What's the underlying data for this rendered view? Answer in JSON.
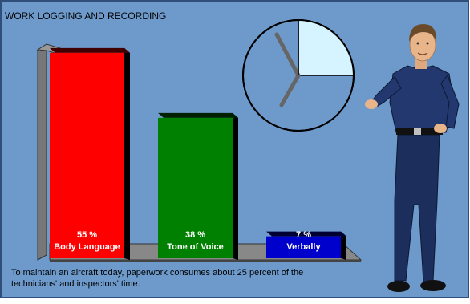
{
  "title": "WORK LOGGING AND RECORDING",
  "caption": "To maintain an aircraft today, paperwork consumes about 25 percent of the technicians' and inspectors' time.",
  "colors": {
    "background": "#6d9acb",
    "frame": "#2f4f7a",
    "bar_red": "#ff0000",
    "bar_green": "#008000",
    "bar_blue": "#0000cc",
    "clock_wedge": "#d6f4ff"
  },
  "clock": {
    "wedge_percent": 25
  },
  "chart_data": {
    "type": "bar",
    "title": "",
    "categories": [
      "Body Language",
      "Tone of Voice",
      "Verbally"
    ],
    "values": [
      55,
      38,
      7
    ],
    "value_labels": [
      "55 %",
      "38 %",
      "7 %"
    ],
    "colors": [
      "#ff0000",
      "#008000",
      "#0000cc"
    ],
    "ylim": [
      0,
      60
    ],
    "grid": false,
    "legend": "none"
  },
  "figure": {
    "icon": "man-presenter-icon"
  }
}
